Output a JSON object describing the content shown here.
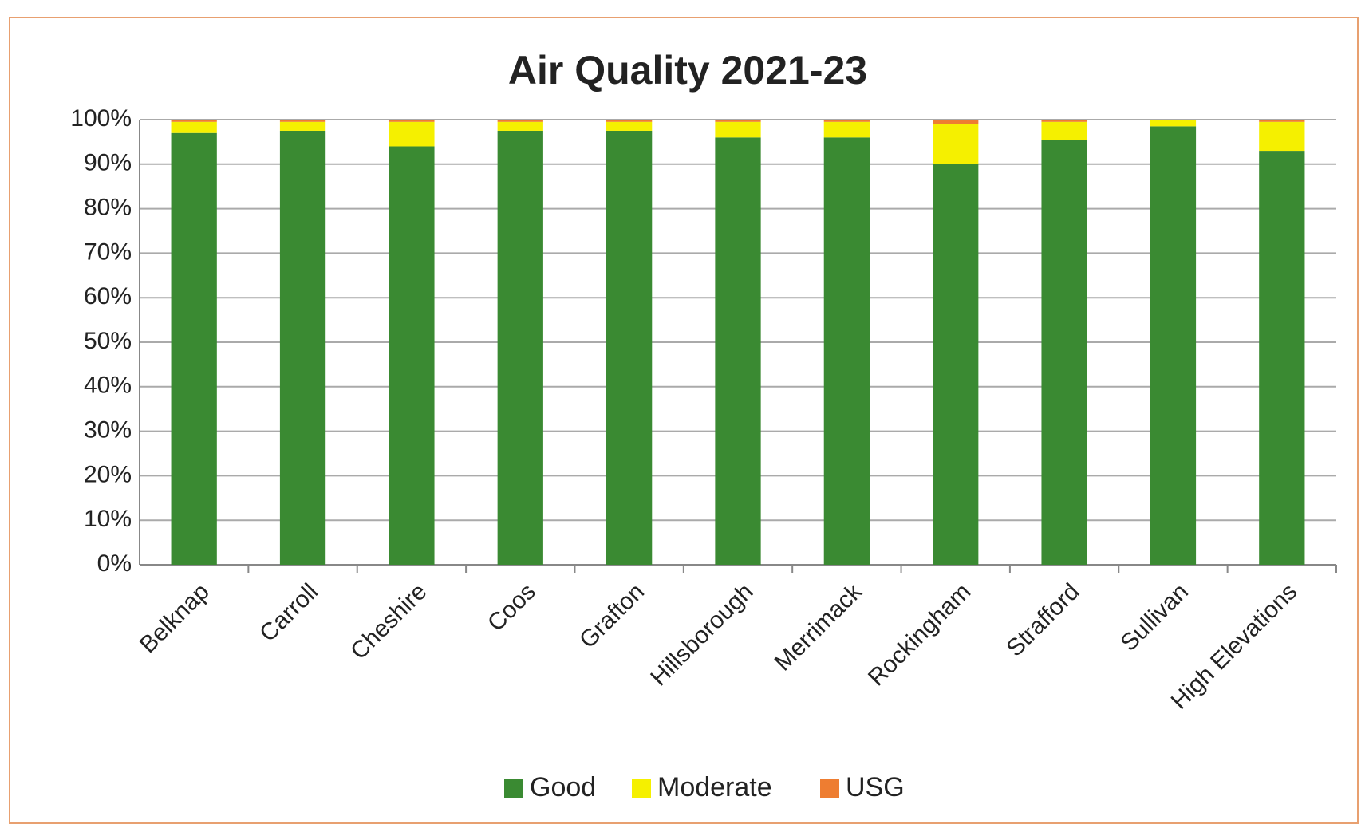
{
  "chart_data": {
    "type": "stacked_bar",
    "title": "Air Quality 2021-23",
    "categories": [
      "Belknap",
      "Carroll",
      "Cheshire",
      "Coos",
      "Grafton",
      "Hillsborough",
      "Merrimack",
      "Rockingham",
      "Strafford",
      "Sullivan",
      "High Elevations"
    ],
    "series": [
      {
        "name": "Good",
        "color": "#3a8a32",
        "values": [
          97,
          97.5,
          94,
          97.5,
          97.5,
          96,
          96,
          90,
          95.5,
          98.5,
          93
        ]
      },
      {
        "name": "Moderate",
        "color": "#f5f000",
        "values": [
          2.5,
          2,
          5.5,
          2,
          2,
          3.5,
          3.5,
          9,
          4,
          1.5,
          6.5
        ]
      },
      {
        "name": "USG",
        "color": "#ee7d31",
        "values": [
          0.5,
          0.5,
          0.5,
          0.5,
          0.5,
          0.5,
          0.5,
          1,
          0.5,
          0,
          0.5
        ]
      }
    ],
    "ylim": [
      0,
      100
    ],
    "yticks": [
      {
        "value": 0,
        "label": "0%"
      },
      {
        "value": 10,
        "label": "10%"
      },
      {
        "value": 20,
        "label": "20%"
      },
      {
        "value": 30,
        "label": "30%"
      },
      {
        "value": 40,
        "label": "40%"
      },
      {
        "value": 50,
        "label": "50%"
      },
      {
        "value": 60,
        "label": "60%"
      },
      {
        "value": 70,
        "label": "70%"
      },
      {
        "value": 80,
        "label": "80%"
      },
      {
        "value": 90,
        "label": "90%"
      },
      {
        "value": 100,
        "label": "100%"
      }
    ],
    "grid": true,
    "legend": "bottom"
  }
}
